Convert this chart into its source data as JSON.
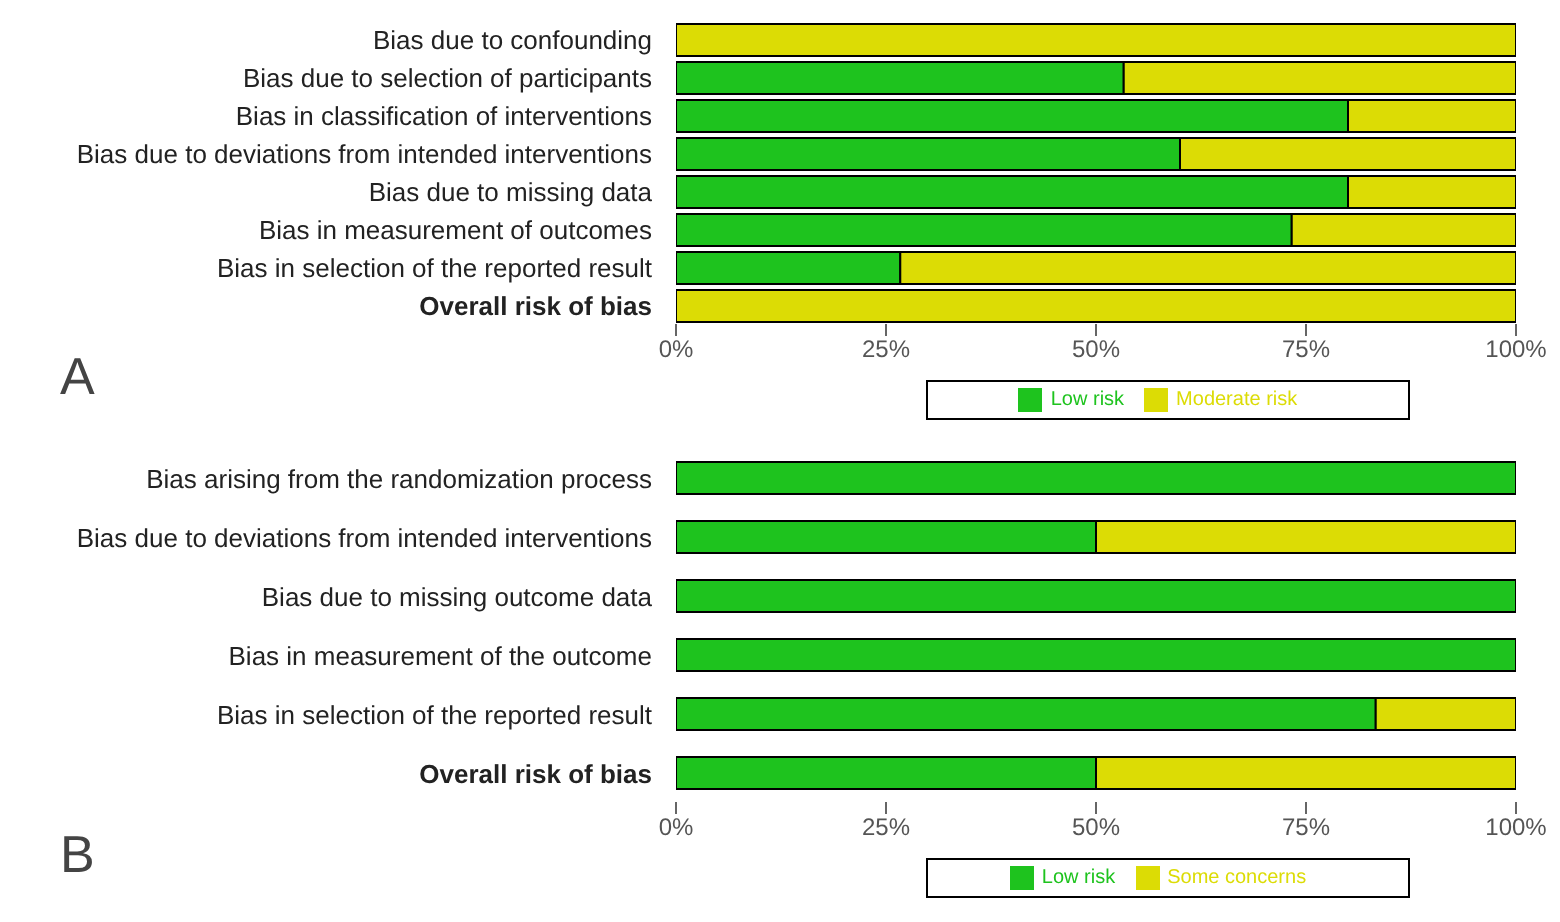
{
  "chart_data": [
    {
      "type": "bar",
      "orientation": "horizontal",
      "stacked": true,
      "categories": [
        "Bias due to confounding",
        "Bias due to selection of participants",
        "Bias in classification of interventions",
        "Bias due to deviations from intended interventions",
        "Bias due to missing data",
        "Bias in measurement of outcomes",
        "Bias in selection of the reported result",
        "Overall risk of bias"
      ],
      "series": [
        {
          "name": "Low risk",
          "color": "#1ec31e",
          "values": [
            0,
            53.3,
            80,
            60,
            80,
            73.3,
            26.7,
            0
          ]
        },
        {
          "name": "Moderate risk",
          "color": "#dcdc05",
          "values": [
            100,
            46.7,
            20,
            40,
            20,
            26.7,
            73.3,
            100
          ]
        }
      ],
      "xlim": [
        0,
        100
      ],
      "xticks": [
        {
          "value": 0,
          "label": "0%"
        },
        {
          "value": 25,
          "label": "25%"
        },
        {
          "value": 50,
          "label": "50%"
        },
        {
          "value": 75,
          "label": "75%"
        },
        {
          "value": 100,
          "label": "100%"
        }
      ],
      "legend": "bottom",
      "annotations": [
        "A"
      ]
    },
    {
      "type": "bar",
      "orientation": "horizontal",
      "stacked": true,
      "categories": [
        "Bias arising from the randomization process",
        "Bias due to deviations from intended interventions",
        "Bias due to missing outcome data",
        "Bias in measurement of the outcome",
        "Bias in selection of the reported result",
        "Overall risk of bias"
      ],
      "series": [
        {
          "name": "Low risk",
          "color": "#1ec31e",
          "values": [
            100,
            50,
            100,
            100,
            83.3,
            50
          ]
        },
        {
          "name": "Some concerns",
          "color": "#dcdc05",
          "values": [
            0,
            50,
            0,
            0,
            16.7,
            50
          ]
        }
      ],
      "xlim": [
        0,
        100
      ],
      "xticks": [
        {
          "value": 0,
          "label": "0%"
        },
        {
          "value": 25,
          "label": "25%"
        },
        {
          "value": 50,
          "label": "50%"
        },
        {
          "value": 75,
          "label": "75%"
        },
        {
          "value": 100,
          "label": "100%"
        }
      ],
      "legend": "bottom",
      "annotations": [
        "B"
      ]
    }
  ]
}
